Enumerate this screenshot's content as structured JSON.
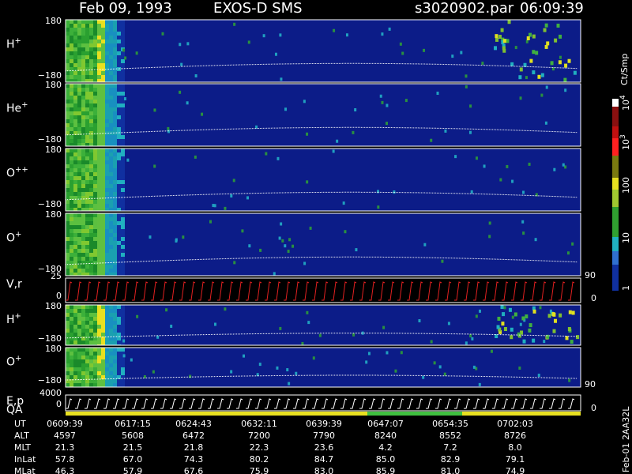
{
  "header": {
    "date": "Feb 09, 1993",
    "instrument": "EXOS-D SMS",
    "file": "s3020902.par",
    "time": "06:09:39"
  },
  "panels": [
    {
      "ion": "H",
      "charge": "+",
      "top": "180",
      "bottom": "−180"
    },
    {
      "ion": "He",
      "charge": "+",
      "top": "180",
      "bottom": "−180"
    },
    {
      "ion": "O",
      "charge": "++",
      "top": "180",
      "bottom": "−180"
    },
    {
      "ion": "O",
      "charge": "+",
      "top": "180",
      "bottom": "−180"
    },
    {
      "ion": "H",
      "charge": "+",
      "top": "180",
      "bottom": "−180"
    },
    {
      "ion": "O",
      "charge": "+",
      "top": "180",
      "bottom": "−180"
    }
  ],
  "vr": {
    "label": "V,r",
    "top": "25",
    "bottom": "0",
    "right_top": "90",
    "right_bottom": "0"
  },
  "ep": {
    "label": "E,p",
    "top": "4000",
    "bottom": "0",
    "right_top": "90",
    "right_bottom": "0"
  },
  "qa": {
    "label": "QA"
  },
  "colorbar": {
    "unit": "Ct/Smp",
    "labels": [
      {
        "base": "10",
        "exp": "4"
      },
      {
        "base": "10",
        "exp": "3"
      },
      "100",
      "10",
      "1"
    ]
  },
  "table": {
    "rows": [
      {
        "label": "UT",
        "values": [
          "0609:39",
          "0617:15",
          "0624:43",
          "0632:11",
          "0639:39",
          "0647:07",
          "0654:35",
          "0702:03"
        ]
      },
      {
        "label": "ALT",
        "values": [
          "4597",
          "5608",
          "6472",
          "7200",
          "7790",
          "8240",
          "8552",
          "8726"
        ]
      },
      {
        "label": "MLT",
        "values": [
          "21.3",
          "21.5",
          "21.8",
          "22.3",
          "23.6",
          "4.2",
          "7.2",
          "8.0"
        ]
      },
      {
        "label": "InLat",
        "values": [
          "57.8",
          "67.0",
          "74.3",
          "80.2",
          "84.7",
          "85.0",
          "82.9",
          "79.1"
        ]
      },
      {
        "label": "MLat",
        "values": [
          "46.3",
          "57.9",
          "67.6",
          "75.9",
          "83.0",
          "85.9",
          "81.0",
          "74.9"
        ]
      }
    ]
  },
  "footer": "Feb-01 2AA32L"
}
